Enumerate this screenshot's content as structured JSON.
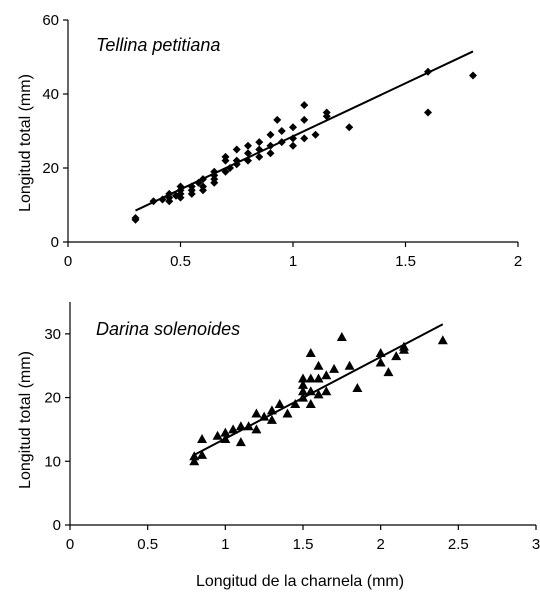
{
  "chart_data": [
    {
      "type": "scatter",
      "title": "Tellina petitiana",
      "xlabel": "",
      "ylabel": "Longitud total (mm)",
      "xlim": [
        0,
        2
      ],
      "ylim": [
        0,
        60
      ],
      "xticks": [
        0,
        0.5,
        1,
        1.5,
        2
      ],
      "xtick_labels": [
        "0",
        "0.5",
        "1",
        "1.5",
        "2"
      ],
      "yticks": [
        0,
        20,
        40,
        60
      ],
      "ytick_labels": [
        "0",
        "20",
        "40",
        "60"
      ],
      "grid": false,
      "marker": "diamond",
      "series": [
        {
          "x": [
            0.3,
            0.3,
            0.38,
            0.42,
            0.45,
            0.45,
            0.45,
            0.48,
            0.5,
            0.5,
            0.5,
            0.5,
            0.55,
            0.55,
            0.55,
            0.58,
            0.6,
            0.6,
            0.6,
            0.65,
            0.65,
            0.65,
            0.65,
            0.7,
            0.7,
            0.7,
            0.72,
            0.75,
            0.75,
            0.75,
            0.8,
            0.8,
            0.8,
            0.85,
            0.85,
            0.85,
            0.9,
            0.9,
            0.9,
            0.93,
            0.95,
            0.95,
            1.0,
            1.0,
            1.0,
            1.05,
            1.05,
            1.05,
            1.1,
            1.15,
            1.15,
            1.25,
            1.6,
            1.6,
            1.8
          ],
          "y": [
            6,
            6.5,
            11,
            11.5,
            11,
            12,
            13,
            12.5,
            12,
            13,
            14,
            15,
            13,
            14,
            15,
            16,
            14,
            17,
            15,
            16,
            17,
            18,
            19,
            19,
            22,
            23,
            20,
            21,
            22,
            25,
            22,
            24,
            26,
            23,
            25,
            27,
            24,
            26,
            29,
            33,
            27,
            30,
            26,
            28,
            31,
            28,
            33,
            37,
            29,
            34,
            35,
            31,
            46,
            35,
            45
          ]
        }
      ],
      "fit_line": {
        "x": [
          0.3,
          1.8
        ],
        "y": [
          8.5,
          51.5
        ]
      }
    },
    {
      "type": "scatter",
      "title": "Darina solenoides",
      "xlabel": "Longitud de la charnela (mm)",
      "ylabel": "Longitud total (mm)",
      "xlim": [
        0,
        3
      ],
      "ylim": [
        0,
        35
      ],
      "xticks": [
        0,
        0.5,
        1,
        1.5,
        2,
        2.5,
        3
      ],
      "xtick_labels": [
        "0",
        "0.5",
        "1",
        "1.5",
        "2",
        "2.5",
        "3"
      ],
      "yticks": [
        0,
        10,
        20,
        30
      ],
      "ytick_labels": [
        "0",
        "10",
        "20",
        "30"
      ],
      "grid": false,
      "marker": "triangle",
      "series": [
        {
          "x": [
            0.8,
            0.8,
            0.85,
            0.85,
            0.95,
            1.0,
            1.0,
            1.05,
            1.1,
            1.1,
            1.15,
            1.2,
            1.2,
            1.25,
            1.3,
            1.3,
            1.35,
            1.4,
            1.45,
            1.5,
            1.5,
            1.5,
            1.5,
            1.55,
            1.55,
            1.55,
            1.55,
            1.6,
            1.6,
            1.6,
            1.65,
            1.65,
            1.7,
            1.75,
            1.8,
            1.85,
            2.0,
            2.0,
            2.05,
            2.1,
            2.15,
            2.15,
            2.4
          ],
          "y": [
            10,
            10.8,
            11,
            13.5,
            14,
            13.5,
            14.5,
            15,
            13,
            15.5,
            15.5,
            15,
            17.5,
            17,
            16.5,
            18,
            19,
            17.5,
            19,
            20,
            21,
            22,
            23,
            19,
            21,
            23,
            27,
            20.5,
            23,
            25,
            21,
            23.5,
            24.5,
            29.5,
            25,
            21.5,
            25.5,
            27,
            24,
            26.5,
            27.5,
            28,
            29
          ]
        }
      ],
      "fit_line": {
        "x": [
          0.8,
          2.4
        ],
        "y": [
          11,
          31.5
        ]
      }
    }
  ]
}
